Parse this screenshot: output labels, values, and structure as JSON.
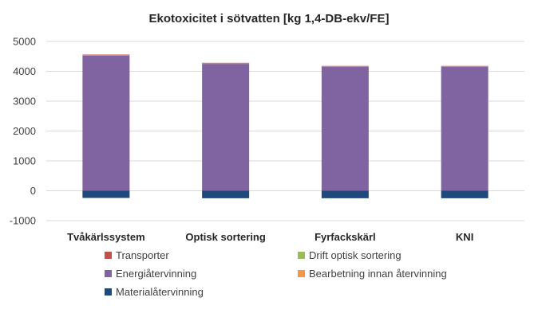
{
  "chart_data": {
    "type": "bar",
    "stacked": true,
    "title": "Ekotoxicitet i sötvatten [kg 1,4-DB-ekv/FE]",
    "xlabel": "",
    "ylabel": "",
    "ylim": [
      -1000,
      5000
    ],
    "yticks": [
      -1000,
      0,
      1000,
      2000,
      3000,
      4000,
      5000
    ],
    "ytick_labels": [
      "-1000",
      "0",
      "1000",
      "2000",
      "3000",
      "4000",
      "5000"
    ],
    "grid": true,
    "legend_position": "bottom",
    "categories": [
      "Tvåkärlssystem",
      "Optisk sortering",
      "Fyrfackskärl",
      "KNI"
    ],
    "series": [
      {
        "name": "Transporter",
        "color": "#C0504D",
        "values": [
          5,
          5,
          5,
          5
        ]
      },
      {
        "name": "Drift optisk sortering",
        "color": "#9BBB59",
        "values": [
          0,
          5,
          0,
          0
        ]
      },
      {
        "name": "Energiåtervinning",
        "color": "#8064A2",
        "values": [
          4530,
          4250,
          4150,
          4150
        ]
      },
      {
        "name": "Bearbetning innan återvinning",
        "color": "#F79646",
        "values": [
          25,
          25,
          25,
          25
        ]
      },
      {
        "name": "Materialåtervinning",
        "color": "#1F497D",
        "values": [
          -240,
          -250,
          -250,
          -250
        ]
      }
    ]
  }
}
